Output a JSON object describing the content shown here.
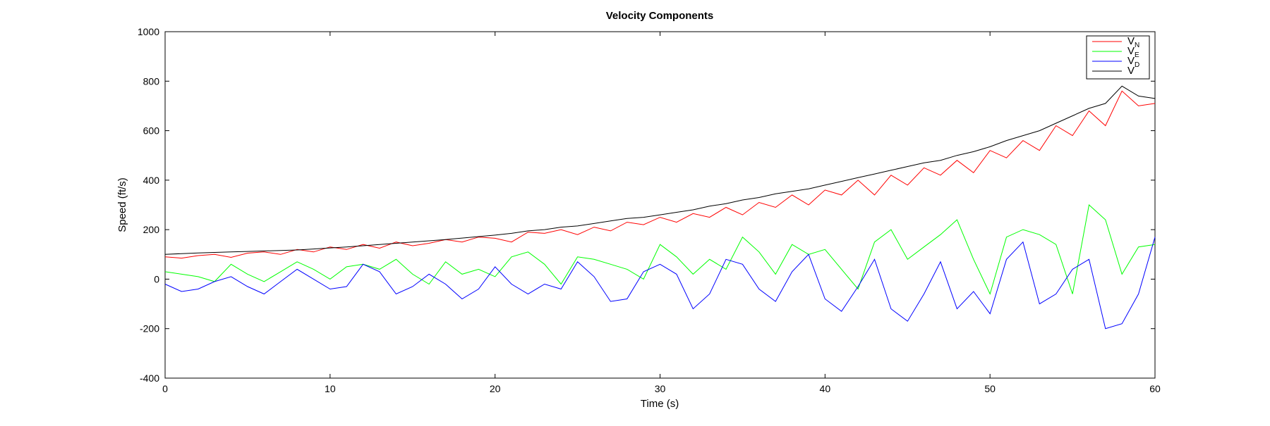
{
  "chart_data": {
    "type": "line",
    "title": "Velocity Components",
    "xlabel": "Time (s)",
    "ylabel": "Speed (ft/s)",
    "xlim": [
      0,
      60
    ],
    "ylim": [
      -400,
      1000
    ],
    "xticks": [
      "0",
      "10",
      "20",
      "30",
      "40",
      "50",
      "60"
    ],
    "yticks": [
      "-400",
      "-200",
      "0",
      "200",
      "400",
      "600",
      "800",
      "1000"
    ],
    "grid": false,
    "legend_position": "top-right",
    "x": [
      0,
      1,
      2,
      3,
      4,
      5,
      6,
      7,
      8,
      9,
      10,
      11,
      12,
      13,
      14,
      15,
      16,
      17,
      18,
      19,
      20,
      21,
      22,
      23,
      24,
      25,
      26,
      27,
      28,
      29,
      30,
      31,
      32,
      33,
      34,
      35,
      36,
      37,
      38,
      39,
      40,
      41,
      42,
      43,
      44,
      45,
      46,
      47,
      48,
      49,
      50,
      51,
      52,
      53,
      54,
      55,
      56,
      57,
      58,
      59,
      60
    ],
    "series": [
      {
        "name": "V",
        "sub": "N",
        "color": "#ff0000",
        "values": [
          90,
          85,
          95,
          100,
          88,
          105,
          110,
          100,
          120,
          110,
          130,
          120,
          140,
          125,
          150,
          135,
          145,
          160,
          150,
          170,
          165,
          150,
          190,
          185,
          200,
          180,
          210,
          195,
          230,
          220,
          250,
          230,
          265,
          250,
          290,
          260,
          310,
          290,
          340,
          300,
          360,
          340,
          400,
          340,
          420,
          380,
          450,
          420,
          480,
          430,
          520,
          490,
          560,
          520,
          620,
          580,
          680,
          620,
          760,
          700,
          710
        ],
        "labels_printed": false
      },
      {
        "name": "V",
        "sub": "E",
        "color": "#00ff00",
        "values": [
          30,
          20,
          10,
          -10,
          60,
          20,
          -10,
          30,
          70,
          40,
          0,
          50,
          60,
          40,
          80,
          20,
          -20,
          70,
          20,
          40,
          10,
          90,
          110,
          60,
          -20,
          90,
          80,
          60,
          40,
          0,
          140,
          90,
          20,
          80,
          40,
          170,
          110,
          20,
          140,
          100,
          120,
          40,
          -40,
          150,
          200,
          80,
          130,
          180,
          240,
          80,
          -60,
          170,
          200,
          180,
          140,
          -60,
          300,
          240,
          20,
          130,
          140
        ]
      },
      {
        "name": "V",
        "sub": "D",
        "color": "#0000ff",
        "values": [
          -20,
          -50,
          -40,
          -10,
          10,
          -30,
          -60,
          -10,
          40,
          0,
          -40,
          -30,
          60,
          30,
          -60,
          -30,
          20,
          -20,
          -80,
          -40,
          50,
          -20,
          -60,
          -20,
          -40,
          70,
          10,
          -90,
          -80,
          30,
          60,
          20,
          -120,
          -60,
          80,
          60,
          -40,
          -90,
          30,
          100,
          -80,
          -130,
          -30,
          80,
          -120,
          -170,
          -60,
          70,
          -120,
          -50,
          -140,
          80,
          150,
          -100,
          -60,
          40,
          80,
          -200,
          -180,
          -60,
          170
        ]
      },
      {
        "name": "V",
        "sub": "",
        "color": "#000000",
        "values": [
          100,
          103,
          106,
          108,
          110,
          112,
          114,
          116,
          118,
          122,
          126,
          130,
          135,
          140,
          145,
          150,
          155,
          160,
          166,
          172,
          178,
          185,
          195,
          200,
          210,
          215,
          225,
          235,
          245,
          250,
          260,
          270,
          280,
          295,
          305,
          320,
          330,
          345,
          355,
          365,
          380,
          395,
          410,
          425,
          440,
          455,
          470,
          480,
          500,
          515,
          535,
          560,
          580,
          600,
          630,
          660,
          690,
          710,
          780,
          740,
          730
        ]
      }
    ]
  }
}
